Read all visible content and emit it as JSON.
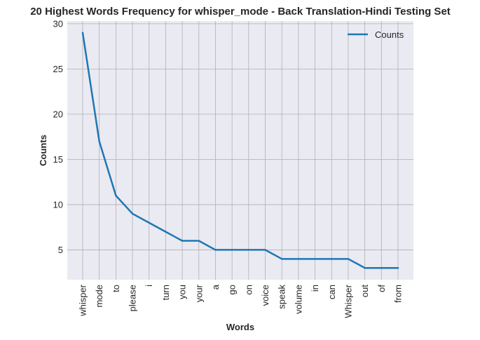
{
  "chart_data": {
    "type": "line",
    "title": "20 Highest Words Frequency for whisper_mode - Back Translation-Hindi Testing Set",
    "xlabel": "Words",
    "ylabel": "Counts",
    "categories": [
      "whisper",
      "mode",
      "to",
      "please",
      "i",
      "turn",
      "you",
      "your",
      "a",
      "go",
      "on",
      "voice",
      "speak",
      "volume",
      "in",
      "can",
      "Whisper",
      "out",
      "of",
      "from"
    ],
    "series": [
      {
        "name": "Counts",
        "values": [
          29,
          17,
          11,
          9,
          8,
          7,
          6,
          6,
          5,
          5,
          5,
          5,
          4,
          4,
          4,
          4,
          4,
          3,
          3,
          3
        ],
        "color": "#1f77b4"
      }
    ],
    "yticks": [
      5,
      10,
      15,
      20,
      25,
      30
    ],
    "ylim": [
      1.7,
      30.3
    ],
    "grid": true,
    "legend_position": "upper right",
    "background": "#eaeaf2",
    "grid_color": "#b0b0b0"
  }
}
